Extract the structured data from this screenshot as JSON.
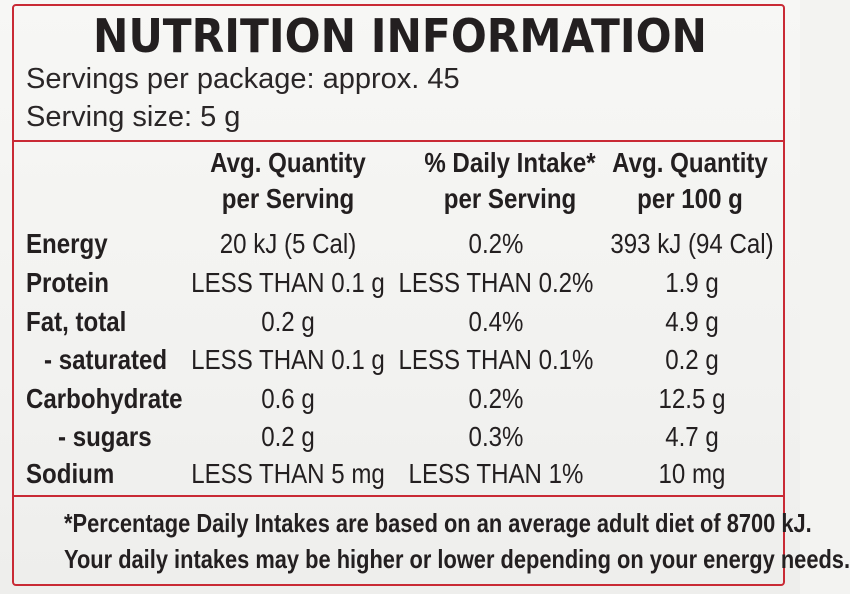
{
  "title": "NUTRITION INFORMATION",
  "servings_per_package": "Servings per package: approx. 45",
  "serving_size": "Serving size: 5 g",
  "headers": {
    "col1": [
      "Avg. Quantity",
      "per Serving"
    ],
    "col2": [
      "% Daily Intake*",
      "per Serving"
    ],
    "col3": [
      "Avg. Quantity",
      "per 100 g"
    ]
  },
  "rows": [
    {
      "label": "Energy",
      "per_serving": "20 kJ (5 Cal)",
      "daily_intake": "0.2%",
      "per_100g": "393 kJ (94 Cal)"
    },
    {
      "label": "Protein",
      "per_serving": "LESS THAN 0.1 g",
      "daily_intake": "LESS THAN 0.2%",
      "per_100g": "1.9 g"
    },
    {
      "label": "Fat, total",
      "per_serving": "0.2 g",
      "daily_intake": "0.4%",
      "per_100g": "4.9 g"
    },
    {
      "label": "- saturated",
      "per_serving": "LESS THAN 0.1 g",
      "daily_intake": "LESS THAN 0.1%",
      "per_100g": "0.2 g"
    },
    {
      "label": "Carbohydrate",
      "per_serving": "0.6 g",
      "daily_intake": "0.2%",
      "per_100g": "12.5 g"
    },
    {
      "label": "- sugars",
      "per_serving": "0.2 g",
      "daily_intake": "0.3%",
      "per_100g": "4.7 g"
    },
    {
      "label": "Sodium",
      "per_serving": "LESS THAN 5 mg",
      "daily_intake": "LESS THAN 1%",
      "per_100g": "10 mg"
    }
  ],
  "footnote": [
    "*Percentage Daily Intakes are based on an average adult diet of 8700 kJ.",
    "Your daily intakes may be higher or lower depending on your energy needs."
  ],
  "colors": {
    "border": "#c92a35",
    "text": "#231f20"
  }
}
